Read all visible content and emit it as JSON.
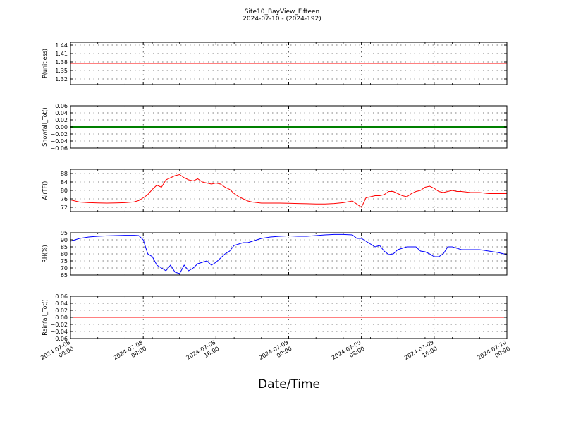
{
  "title": "Site10_BayView_Fifteen",
  "subtitle": "2024-07-10 - (2024-192)",
  "x_axis_label": "Date/Time",
  "x_ticks": [
    [
      "2024-07-08",
      "00:00"
    ],
    [
      "2024-07-08",
      "08:00"
    ],
    [
      "2024-07-08",
      "16:00"
    ],
    [
      "2024-07-09",
      "00:00"
    ],
    [
      "2024-07-09",
      "08:00"
    ],
    [
      "2024-07-09",
      "16:00"
    ],
    [
      "2024-07-10",
      "00:00"
    ]
  ],
  "chart_data": [
    {
      "type": "line",
      "ylabel": "P(unitless)",
      "color": "#ff0000",
      "ylim": [
        1.3,
        1.45
      ],
      "yticks": [
        "1.44",
        "1.41",
        "1.38",
        "1.35",
        "1.32"
      ],
      "ytick_values": [
        1.44,
        1.41,
        1.38,
        1.35,
        1.32
      ],
      "x_hours": [
        0,
        48
      ],
      "values": [
        1.375,
        1.375
      ]
    },
    {
      "type": "line",
      "ylabel": "Snowfall_Tot()",
      "color": "#008000",
      "thick": true,
      "ylim": [
        -0.06,
        0.06
      ],
      "yticks": [
        "0.06",
        "0.04",
        "0.02",
        "0.00",
        "−0.02",
        "−0.04",
        "−0.06"
      ],
      "ytick_values": [
        0.06,
        0.04,
        0.02,
        0.0,
        -0.02,
        -0.04,
        -0.06
      ],
      "x_hours": [
        0,
        48
      ],
      "values": [
        0.0,
        0.0
      ]
    },
    {
      "type": "line",
      "ylabel": "AirTF()",
      "color": "#ff0000",
      "ylim": [
        70,
        90
      ],
      "yticks": [
        "88",
        "84",
        "80",
        "76",
        "72"
      ],
      "ytick_values": [
        88,
        84,
        80,
        76,
        72
      ],
      "x_hours": [
        0,
        1,
        2,
        3,
        4,
        5,
        6,
        7,
        7.5,
        8,
        8.5,
        9,
        9.5,
        10,
        10.5,
        11,
        11.5,
        12,
        12.5,
        13,
        13.5,
        14,
        14.5,
        15,
        15.5,
        16,
        16.5,
        17,
        17.5,
        18,
        18.5,
        19,
        19.5,
        20,
        21,
        22,
        23,
        24,
        25,
        26,
        27,
        28,
        29,
        30,
        31,
        32,
        32.5,
        33,
        33.5,
        34,
        34.5,
        35,
        35.5,
        36,
        36.5,
        37,
        37.5,
        38,
        38.5,
        39,
        39.5,
        40,
        40.5,
        41,
        41.5,
        42,
        42.5,
        43,
        44,
        45,
        46,
        47,
        48
      ],
      "values": [
        75.5,
        74.5,
        74.2,
        74.1,
        74.0,
        74.1,
        74.2,
        74.6,
        75.2,
        76.5,
        78.0,
        80.5,
        82.5,
        81.5,
        85.0,
        86.0,
        87.0,
        87.5,
        86.0,
        85.0,
        84.5,
        85.5,
        84.0,
        83.5,
        83.0,
        83.5,
        83.0,
        81.5,
        80.5,
        78.5,
        77.0,
        76.0,
        75.0,
        74.5,
        74.0,
        74.0,
        74.0,
        73.9,
        73.8,
        73.7,
        73.6,
        73.6,
        73.8,
        74.2,
        75.0,
        72.0,
        76.5,
        77.0,
        77.5,
        77.5,
        78.0,
        79.5,
        79.5,
        78.5,
        77.5,
        77.0,
        78.5,
        79.5,
        80.0,
        81.5,
        82.0,
        81.0,
        79.5,
        79.0,
        79.5,
        80.0,
        79.5,
        79.5,
        79.0,
        79.0,
        78.5,
        78.5,
        78.5
      ]
    },
    {
      "type": "line",
      "ylabel": "RH(%)",
      "color": "#0000ff",
      "ylim": [
        65,
        95
      ],
      "yticks": [
        "95",
        "90",
        "85",
        "80",
        "75",
        "70",
        "65"
      ],
      "ytick_values": [
        95,
        90,
        85,
        80,
        75,
        70,
        65
      ],
      "x_hours": [
        0,
        1,
        2,
        3,
        4,
        5,
        6,
        7,
        7.5,
        8,
        8.5,
        9,
        9.5,
        10,
        10.5,
        11,
        11.5,
        12,
        12.5,
        13,
        13.5,
        14,
        14.5,
        15,
        15.5,
        16,
        16.5,
        17,
        17.5,
        18,
        18.5,
        19,
        19.5,
        20,
        21,
        22,
        23,
        24,
        25,
        26,
        27,
        28,
        29,
        30,
        31,
        31.5,
        32,
        32.5,
        33,
        33.5,
        34,
        34.5,
        35,
        35.5,
        36,
        36.5,
        37,
        37.5,
        38,
        38.5,
        39,
        39.5,
        40,
        40.5,
        41,
        41.5,
        42,
        42.5,
        43,
        44,
        45,
        46,
        47,
        48
      ],
      "values": [
        89.0,
        91.0,
        92.0,
        92.5,
        92.8,
        93.0,
        93.2,
        93.2,
        93.0,
        90.0,
        80.0,
        78.0,
        72.0,
        70.0,
        68.0,
        72.0,
        67.0,
        66.0,
        72.0,
        68.0,
        70.0,
        73.0,
        74.0,
        75.0,
        72.0,
        74.0,
        77.0,
        80.0,
        82.0,
        86.0,
        87.0,
        88.0,
        88.0,
        89.0,
        91.0,
        92.0,
        92.5,
        92.8,
        92.5,
        92.5,
        93.0,
        93.5,
        93.8,
        93.8,
        93.5,
        91.0,
        91.0,
        89.0,
        87.0,
        85.0,
        86.0,
        82.0,
        79.5,
        80.0,
        83.0,
        84.0,
        85.0,
        85.0,
        85.0,
        82.0,
        81.5,
        80.0,
        78.0,
        78.0,
        80.0,
        85.0,
        85.0,
        84.0,
        83.0,
        83.0,
        83.0,
        82.0,
        81.0,
        79.5
      ]
    },
    {
      "type": "line",
      "ylabel": "Rainfall_Tot()",
      "color": "#ff0000",
      "ylim": [
        -0.06,
        0.06
      ],
      "yticks": [
        "0.06",
        "0.04",
        "0.02",
        "0.00",
        "−0.02",
        "−0.04",
        "−0.06"
      ],
      "ytick_values": [
        0.06,
        0.04,
        0.02,
        0.0,
        -0.02,
        -0.04,
        -0.06
      ],
      "x_hours": [
        0,
        48
      ],
      "values": [
        0.0,
        0.0
      ]
    }
  ]
}
